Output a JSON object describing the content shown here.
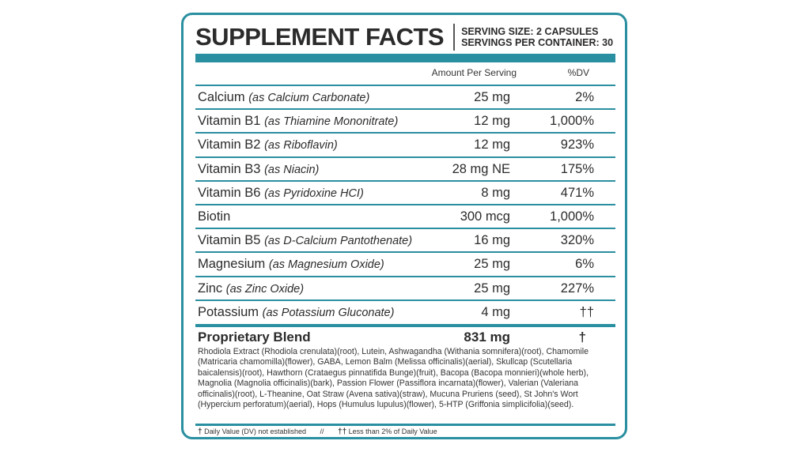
{
  "header": {
    "title": "SUPPLEMENT FACTS",
    "serving_size": "SERVING SIZE: 2 CAPSULES",
    "servings_per_container": "SERVINGS PER CONTAINER: 30"
  },
  "columns": {
    "amount": "Amount Per Serving",
    "dv": "%DV"
  },
  "nutrients": [
    {
      "name": "Calcium",
      "source": "(as Calcium Carbonate)",
      "amount": "25 mg",
      "dv": "2%"
    },
    {
      "name": "Vitamin B1",
      "source": "(as Thiamine Mononitrate)",
      "amount": "12 mg",
      "dv": "1,000%"
    },
    {
      "name": "Vitamin B2",
      "source": "(as Riboflavin)",
      "amount": "12 mg",
      "dv": "923%"
    },
    {
      "name": "Vitamin B3",
      "source": "(as Niacin)",
      "amount": "28 mg NE",
      "dv": "175%"
    },
    {
      "name": "Vitamin B6",
      "source": "(as Pyridoxine HCI)",
      "amount": "8 mg",
      "dv": "471%"
    },
    {
      "name": "Biotin",
      "source": "",
      "amount": "300 mcg",
      "dv": "1,000%"
    },
    {
      "name": "Vitamin B5",
      "source": "(as D-Calcium Pantothenate)",
      "amount": "16 mg",
      "dv": "320%"
    },
    {
      "name": "Magnesium",
      "source": "(as Magnesium Oxide)",
      "amount": "25 mg",
      "dv": "6%"
    },
    {
      "name": "Zinc",
      "source": "(as Zinc Oxide)",
      "amount": "25 mg",
      "dv": "227%"
    },
    {
      "name": "Potassium",
      "source": "(as Potassium Gluconate)",
      "amount": "4 mg",
      "dv": "††"
    }
  ],
  "blend": {
    "name": "Proprietary Blend",
    "amount": "831 mg",
    "dv": "†",
    "ingredients": "Rhodiola Extract (Rhodiola crenulata)(root), Lutein, Ashwagandha (Withania somnifera)(root), Chamomile (Matricaria chamomilla)(flower), GABA, Lemon Balm (Melissa officinalis)(aerial), Skullcap (Scutellaria baicalensis)(root), Hawthorn (Crataegus pinnatifida Bunge)(fruit), Bacopa (Bacopa monnieri)(whole herb), Magnolia (Magnolia officinalis)(bark), Passion Flower (Passiflora incarnata)(flower), Valerian (Valeriana officinalis)(root), L-Theanine, Oat Straw (Avena sativa)(straw), Mucuna Pruriens (seed), St John's Wort (Hypercium perforatum)(aerial), Hops (Humulus lupulus)(flower), 5-HTP (Griffonia simplicifolia)(seed)."
  },
  "footnote": {
    "dagger_symbol": "†",
    "dagger_text": "Daily Value (DV) not established",
    "separator": "//",
    "double_dagger_symbol": "††",
    "double_dagger_text": "Less than 2% of Daily Value"
  },
  "colors": {
    "accent": "#2a8fa0",
    "text": "#2b2b2b"
  }
}
